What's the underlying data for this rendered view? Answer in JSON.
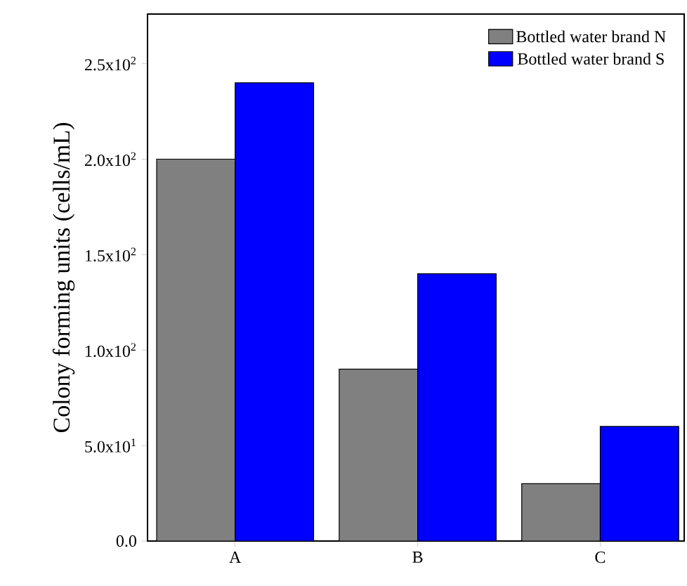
{
  "chart_data": {
    "type": "bar",
    "ylabel": "Colony forming units (cells/mL)",
    "categories": [
      "A",
      "B",
      "C"
    ],
    "series": [
      {
        "name": "Bottled water brand N",
        "color": "#808080",
        "values": [
          200,
          90,
          30
        ]
      },
      {
        "name": "Bottled water brand S",
        "color": "#0000ff",
        "values": [
          240,
          140,
          60
        ]
      }
    ],
    "ylim": [
      0,
      276
    ],
    "yticks": [
      {
        "value": 0,
        "label": "0.0"
      },
      {
        "value": 50,
        "label": "5.0x10$^{1}$"
      },
      {
        "value": 100,
        "label": "1.0x10$^{2}$"
      },
      {
        "value": 150,
        "label": "1.5x10$^{2}$"
      },
      {
        "value": 200,
        "label": "2.0x10$^{2}$"
      },
      {
        "value": 250,
        "label": "2.5x10$^{2}$"
      }
    ],
    "legend": "top right",
    "grid": false
  }
}
